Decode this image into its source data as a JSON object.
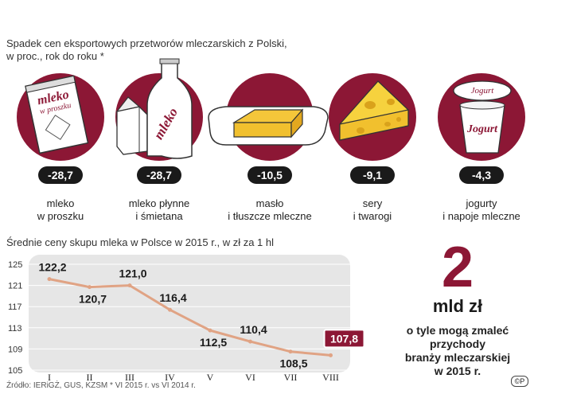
{
  "header": {
    "caption_line1": "Spadek cen eksportowych przetworów mleczarskich z Polski,",
    "caption_line2": "w proc., rok do roku *"
  },
  "products": [
    {
      "value": "-28,7",
      "label_line1": "mleko",
      "label_line2": "w proszku",
      "pack_text": "mleko",
      "pack_sub": "w proszku",
      "icon": "milk-powder-bag-icon"
    },
    {
      "value": "-28,7",
      "label_line1": "mleko płynne",
      "label_line2": "i śmietana",
      "pack_text": "mleko",
      "icon": "milk-bottle-icon"
    },
    {
      "value": "-10,5",
      "label_line1": "masło",
      "label_line2": "i tłuszcze mleczne",
      "icon": "butter-icon"
    },
    {
      "value": "-9,1",
      "label_line1": "sery",
      "label_line2": "i twarogi",
      "icon": "cheese-icon"
    },
    {
      "value": "-4,3",
      "label_line1": "jogurty",
      "label_line2": "i napoje mleczne",
      "pack_text": "Jogurt",
      "icon": "yogurt-cup-icon"
    }
  ],
  "colors": {
    "accent": "#8c1735",
    "line": "#e0a384",
    "panel": "#e6e6e6",
    "dark": "#1a1a1a"
  },
  "chart_data": {
    "type": "line",
    "title": "Średnie ceny skupu mleka w Polsce w 2015 r., w zł za 1 hl",
    "categories": [
      "I",
      "II",
      "III",
      "IV",
      "V",
      "VI",
      "VII",
      "VIII"
    ],
    "values": [
      122.2,
      120.7,
      121.0,
      116.4,
      112.5,
      110.4,
      108.5,
      107.8
    ],
    "value_labels": [
      "122,2",
      "120,7",
      "121,0",
      "116,4",
      "112,5",
      "110,4",
      "108,5",
      "107,8"
    ],
    "highlight_index": 7,
    "yticks": [
      "125",
      "121",
      "117",
      "113",
      "109",
      "105"
    ],
    "ylim": [
      105,
      125
    ],
    "grid": true
  },
  "callout": {
    "number": "2",
    "unit": "mld zł",
    "desc_line1": "o tyle mogą zmaleć",
    "desc_line2": "przychody",
    "desc_line3": "branży mleczarskiej",
    "desc_line4": "w 2015 r."
  },
  "source": "Źródło: IERiGŻ, GUS, KZSM * VI 2015 r. vs VI 2014 r.",
  "logo": "©P"
}
